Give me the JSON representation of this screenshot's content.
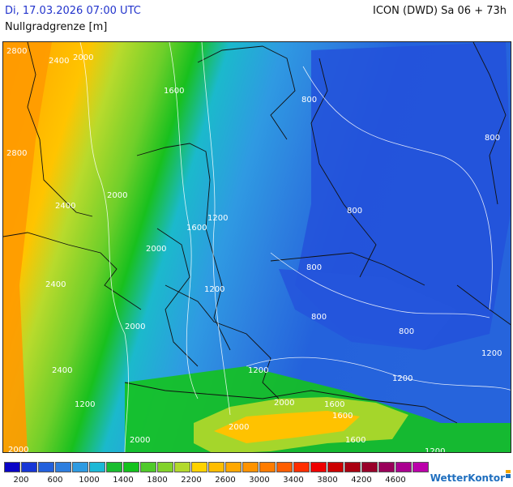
{
  "header": {
    "date_time": "Di, 17.03.2026 07:00 UTC",
    "model_run": "ICON (DWD) Sa 06 + 73h",
    "parameter": "Nullgradgrenze [m]"
  },
  "map": {
    "contour_labels": [
      "2800",
      "2400",
      "2000",
      "1600",
      "2800",
      "2400",
      "2000",
      "1200",
      "1600",
      "2400",
      "2000",
      "1200",
      "2400",
      "2000",
      "1200",
      "2000",
      "800",
      "800",
      "800",
      "800",
      "800",
      "800",
      "1200",
      "1200",
      "1200",
      "1600",
      "2000",
      "1600",
      "2000",
      "1600",
      "2000",
      "1200"
    ]
  },
  "legend": {
    "colors": [
      "#0a04c6",
      "#1736d6",
      "#2360dc",
      "#2d7edf",
      "#2f9be2",
      "#1cb8d6",
      "#19bd2f",
      "#13c21c",
      "#4fca2a",
      "#82d22a",
      "#b3d92c",
      "#ffd200",
      "#ffbd00",
      "#ffa800",
      "#ff9300",
      "#ff7c00",
      "#ff5e00",
      "#ff2e00",
      "#ee0000",
      "#cc0000",
      "#aa0011",
      "#99002a",
      "#99005a",
      "#aa0090",
      "#bb00aa"
    ],
    "labels": [
      "200",
      "600",
      "1000",
      "1400",
      "1800",
      "2200",
      "2600",
      "3000",
      "3400",
      "3800",
      "4200",
      "4600"
    ]
  },
  "brand": "WetterKontor"
}
